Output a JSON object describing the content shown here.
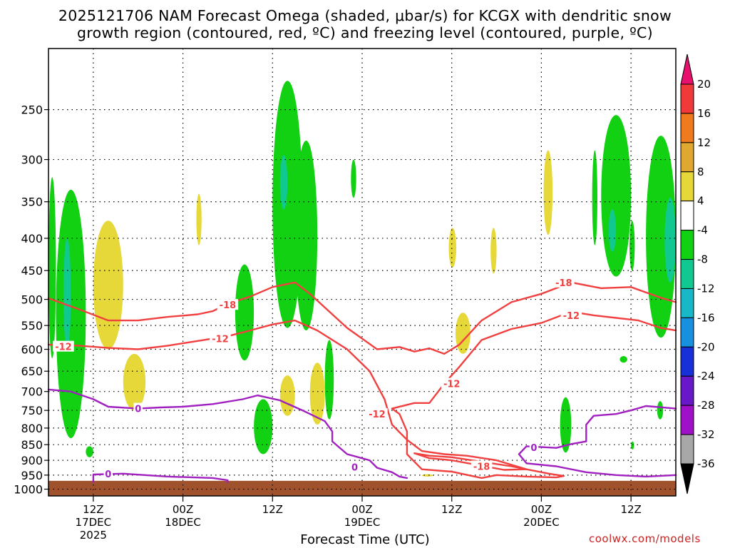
{
  "header": {
    "title_line1": "2025121706 NAM Forecast Omega (shaded, μbar/s) for KCGX with dendritic snow",
    "title_line2": "growth region (contoured, red, ºC) and freezing level (contoured, purple, ºC)"
  },
  "footer": {
    "credit": "coolwx.com/models"
  },
  "chart_data": {
    "type": "heatmap",
    "title": "2025121706 NAM Forecast Omega (shaded, μbar/s) for KCGX with dendritic snow growth region (contoured, red, ºC) and freezing level (contoured, purple, ºC)",
    "xlabel": "Forecast Time (UTC)",
    "ylabel": "",
    "y_axis": {
      "scale": "log-pressure",
      "inverted": true,
      "ticks": [
        250,
        300,
        350,
        400,
        450,
        500,
        550,
        600,
        650,
        700,
        750,
        800,
        850,
        900,
        950,
        1000
      ],
      "tick_labels": [
        "250",
        "300",
        "350",
        "400",
        "450",
        "500",
        "550",
        "600",
        "650",
        "700",
        "750",
        "800",
        "850",
        "900",
        "950",
        "1000"
      ],
      "range": [
        200,
        1025
      ]
    },
    "x_axis": {
      "range_hours": [
        0,
        84
      ],
      "ticks": [
        {
          "label": "12Z",
          "sub": [
            "17DEC",
            "2025"
          ],
          "hour": 6
        },
        {
          "label": "00Z",
          "sub": [
            "18DEC"
          ],
          "hour": 18
        },
        {
          "label": "12Z",
          "sub": [],
          "hour": 30
        },
        {
          "label": "00Z",
          "sub": [
            "19DEC"
          ],
          "hour": 42
        },
        {
          "label": "12Z",
          "sub": [],
          "hour": 54
        },
        {
          "label": "00Z",
          "sub": [
            "20DEC"
          ],
          "hour": 66
        },
        {
          "label": "12Z",
          "sub": [],
          "hour": 78
        }
      ]
    },
    "grid": true,
    "colorbar": {
      "units": "μbar/s",
      "position": "right",
      "labels": [
        "20",
        "16",
        "12",
        "8",
        "4",
        "-4",
        "-8",
        "-12",
        "-16",
        "-20",
        "-24",
        "-28",
        "-32",
        "-36"
      ],
      "bins": [
        {
          "from": 20,
          "to": 24,
          "color": "#e8106e"
        },
        {
          "from": 16,
          "to": 20,
          "color": "#f03a3a"
        },
        {
          "from": 12,
          "to": 16,
          "color": "#f07a1e"
        },
        {
          "from": 8,
          "to": 12,
          "color": "#e0a830"
        },
        {
          "from": 4,
          "to": 8,
          "color": "#e6d838"
        },
        {
          "from": -4,
          "to": 4,
          "color": "#ffffff"
        },
        {
          "from": -8,
          "to": -4,
          "color": "#12d012"
        },
        {
          "from": -12,
          "to": -8,
          "color": "#10c890"
        },
        {
          "from": -16,
          "to": -12,
          "color": "#18b8c8"
        },
        {
          "from": -20,
          "to": -16,
          "color": "#1890e0"
        },
        {
          "from": -24,
          "to": -20,
          "color": "#1830d8"
        },
        {
          "from": -28,
          "to": -24,
          "color": "#6818c8"
        },
        {
          "from": -32,
          "to": -28,
          "color": "#a010c8"
        },
        {
          "from": -36,
          "to": -32,
          "color": "#a8a8a8"
        },
        {
          "from": -40,
          "to": -36,
          "color": "#000000"
        }
      ]
    },
    "contours": [
      {
        "variable": "temperature",
        "level": -18,
        "color": "#f04040",
        "points": [
          [
            0,
            498
          ],
          [
            4,
            518
          ],
          [
            8,
            540
          ],
          [
            12,
            540
          ],
          [
            16,
            533
          ],
          [
            20,
            528
          ],
          [
            22,
            522
          ],
          [
            24,
            508
          ],
          [
            27,
            495
          ],
          [
            30,
            478
          ],
          [
            33,
            470
          ],
          [
            35,
            490
          ],
          [
            37,
            515
          ],
          [
            40,
            555
          ],
          [
            44,
            600
          ],
          [
            47,
            595
          ],
          [
            49,
            605
          ],
          [
            51,
            598
          ],
          [
            53,
            610
          ],
          [
            55,
            590
          ],
          [
            58,
            540
          ],
          [
            62,
            505
          ],
          [
            66,
            490
          ],
          [
            70,
            470
          ],
          [
            74,
            480
          ],
          [
            78,
            478
          ],
          [
            82,
            497
          ],
          [
            84,
            505
          ]
        ],
        "labels": [
          [
            24,
            510
          ],
          [
            69,
            470
          ]
        ]
      },
      {
        "variable": "temperature",
        "level": -12,
        "color": "#f04040",
        "points": [
          [
            0,
            590
          ],
          [
            4,
            592
          ],
          [
            8,
            597
          ],
          [
            12,
            600
          ],
          [
            16,
            592
          ],
          [
            20,
            582
          ],
          [
            24,
            572
          ],
          [
            27,
            560
          ],
          [
            30,
            548
          ],
          [
            33,
            540
          ],
          [
            36,
            560
          ],
          [
            40,
            600
          ],
          [
            43,
            650
          ],
          [
            45,
            720
          ],
          [
            46,
            790
          ],
          [
            48,
            835
          ],
          [
            50,
            870
          ],
          [
            53,
            880
          ],
          [
            56,
            885
          ],
          [
            60,
            900
          ],
          [
            64,
            930
          ],
          [
            67,
            945
          ],
          [
            69,
            953
          ],
          [
            68,
            958
          ],
          [
            64,
            955
          ],
          [
            60,
            950
          ],
          [
            58,
            960
          ],
          [
            54,
            938
          ],
          [
            50,
            930
          ],
          [
            48,
            880
          ],
          [
            48,
            810
          ],
          [
            47,
            760
          ],
          [
            46,
            745
          ],
          [
            49,
            730
          ],
          [
            51,
            730
          ],
          [
            53,
            680
          ],
          [
            55,
            640
          ],
          [
            58,
            580
          ],
          [
            62,
            557
          ],
          [
            66,
            545
          ],
          [
            70,
            523
          ],
          [
            73,
            530
          ],
          [
            76,
            535
          ],
          [
            79,
            540
          ],
          [
            82,
            555
          ],
          [
            84,
            560
          ]
        ],
        "labels": [
          [
            2,
            594
          ],
          [
            23,
            577
          ],
          [
            44,
            760
          ],
          [
            54,
            680
          ],
          [
            70,
            530
          ]
        ]
      },
      {
        "variable": "temperature",
        "level": -18,
        "color": "#f04040",
        "points": [
          [
            49,
            877
          ],
          [
            51,
            885
          ],
          [
            54,
            890
          ],
          [
            58,
            905
          ],
          [
            62,
            920
          ],
          [
            64,
            930
          ],
          [
            61,
            932
          ],
          [
            58,
            918
          ],
          [
            54,
            900
          ],
          [
            51,
            893
          ],
          [
            49,
            877
          ]
        ],
        "labels": [
          [
            58,
            920
          ]
        ]
      },
      {
        "variable": "freezing_level",
        "level": 0,
        "color": "#a020c0",
        "points": [
          [
            0,
            695
          ],
          [
            3,
            700
          ],
          [
            6,
            720
          ],
          [
            8,
            740
          ],
          [
            12,
            745
          ],
          [
            15,
            742
          ],
          [
            18,
            740
          ],
          [
            22,
            733
          ],
          [
            26,
            720
          ],
          [
            28,
            710
          ],
          [
            31,
            723
          ],
          [
            34,
            750
          ],
          [
            37,
            780
          ],
          [
            38,
            810
          ],
          [
            38,
            840
          ],
          [
            40,
            880
          ],
          [
            43,
            900
          ],
          [
            44,
            925
          ],
          [
            46,
            940
          ],
          [
            47,
            955
          ],
          [
            48,
            960
          ]
        ],
        "labels": [
          [
            12,
            745
          ],
          [
            41,
            922
          ]
        ]
      },
      {
        "variable": "freezing_level",
        "level": 0,
        "color": "#a020c0",
        "points": [
          [
            6,
            975
          ],
          [
            6,
            948
          ],
          [
            10,
            945
          ],
          [
            16,
            955
          ],
          [
            22,
            960
          ],
          [
            24,
            968
          ],
          [
            24,
            975
          ]
        ],
        "labels": [
          [
            8,
            945
          ]
        ]
      },
      {
        "variable": "freezing_level",
        "level": 0,
        "color": "#a020c0",
        "points": [
          [
            84,
            745
          ],
          [
            80,
            738
          ],
          [
            78,
            750
          ],
          [
            76,
            760
          ],
          [
            73,
            765
          ],
          [
            72,
            790
          ],
          [
            72,
            840
          ],
          [
            70,
            848
          ],
          [
            68,
            860
          ],
          [
            64,
            855
          ],
          [
            63,
            880
          ],
          [
            64,
            910
          ],
          [
            68,
            920
          ],
          [
            72,
            940
          ],
          [
            76,
            950
          ],
          [
            80,
            955
          ],
          [
            84,
            950
          ]
        ],
        "labels": [
          [
            65,
            858
          ]
        ]
      }
    ],
    "omega_regions": [
      {
        "value": -6,
        "hours": [
          0,
          1
        ],
        "pressure": [
          320,
          620
        ]
      },
      {
        "value": -6,
        "hours": [
          1,
          5
        ],
        "pressure": [
          335,
          830
        ]
      },
      {
        "value": -10,
        "hours": [
          2,
          3
        ],
        "pressure": [
          400,
          600
        ]
      },
      {
        "value": 6,
        "hours": [
          6,
          10
        ],
        "pressure": [
          375,
          600
        ]
      },
      {
        "value": 6,
        "hours": [
          10,
          13
        ],
        "pressure": [
          610,
          750
        ]
      },
      {
        "value": -6,
        "hours": [
          5,
          6
        ],
        "pressure": [
          855,
          890
        ]
      },
      {
        "value": 6,
        "hours": [
          19.8,
          20.5
        ],
        "pressure": [
          340,
          410
        ]
      },
      {
        "value": -6,
        "hours": [
          25,
          27.5
        ],
        "pressure": [
          440,
          625
        ]
      },
      {
        "value": -6,
        "hours": [
          27.5,
          30
        ],
        "pressure": [
          720,
          880
        ]
      },
      {
        "value": -6,
        "hours": [
          30,
          34
        ],
        "pressure": [
          225,
          555
        ]
      },
      {
        "value": -10,
        "hours": [
          31,
          32
        ],
        "pressure": [
          295,
          360
        ]
      },
      {
        "value": 6,
        "hours": [
          31,
          33
        ],
        "pressure": [
          660,
          765
        ]
      },
      {
        "value": -6,
        "hours": [
          33,
          36
        ],
        "pressure": [
          280,
          560
        ]
      },
      {
        "value": 6,
        "hours": [
          35,
          37
        ],
        "pressure": [
          630,
          790
        ]
      },
      {
        "value": -6,
        "hours": [
          37,
          38.2
        ],
        "pressure": [
          580,
          775
        ]
      },
      {
        "value": -6,
        "hours": [
          40.5,
          41.2
        ],
        "pressure": [
          300,
          345
        ]
      },
      {
        "value": 6,
        "hours": [
          53.6,
          54.6
        ],
        "pressure": [
          385,
          445
        ]
      },
      {
        "value": 6,
        "hours": [
          54.5,
          56.5
        ],
        "pressure": [
          525,
          610
        ]
      },
      {
        "value": 6,
        "hours": [
          59.2,
          60
        ],
        "pressure": [
          385,
          455
        ]
      },
      {
        "value": 6,
        "hours": [
          66.3,
          67.5
        ],
        "pressure": [
          290,
          395
        ]
      },
      {
        "value": -6,
        "hours": [
          68.5,
          70
        ],
        "pressure": [
          715,
          875
        ]
      },
      {
        "value": -6,
        "hours": [
          72.8,
          73.5
        ],
        "pressure": [
          290,
          410
        ]
      },
      {
        "value": -6,
        "hours": [
          74,
          78
        ],
        "pressure": [
          255,
          460
        ]
      },
      {
        "value": -10,
        "hours": [
          75,
          76
        ],
        "pressure": [
          360,
          420
        ]
      },
      {
        "value": -6,
        "hours": [
          77.8,
          78.5
        ],
        "pressure": [
          375,
          450
        ]
      },
      {
        "value": -6,
        "hours": [
          76.5,
          77.5
        ],
        "pressure": [
          615,
          630
        ]
      },
      {
        "value": -6,
        "hours": [
          80,
          84
        ],
        "pressure": [
          275,
          575
        ]
      },
      {
        "value": -10,
        "hours": [
          82.5,
          84
        ],
        "pressure": [
          345,
          470
        ]
      },
      {
        "value": -6,
        "hours": [
          81.5,
          82.3
        ],
        "pressure": [
          725,
          775
        ]
      },
      {
        "value": -6,
        "hours": [
          78,
          78.4
        ],
        "pressure": [
          840,
          865
        ]
      },
      {
        "value": 6,
        "hours": [
          50,
          51.5
        ],
        "pressure": [
          947,
          955
        ]
      }
    ],
    "terrain": {
      "color": "#a0522d",
      "surface_pressure": 970
    }
  }
}
